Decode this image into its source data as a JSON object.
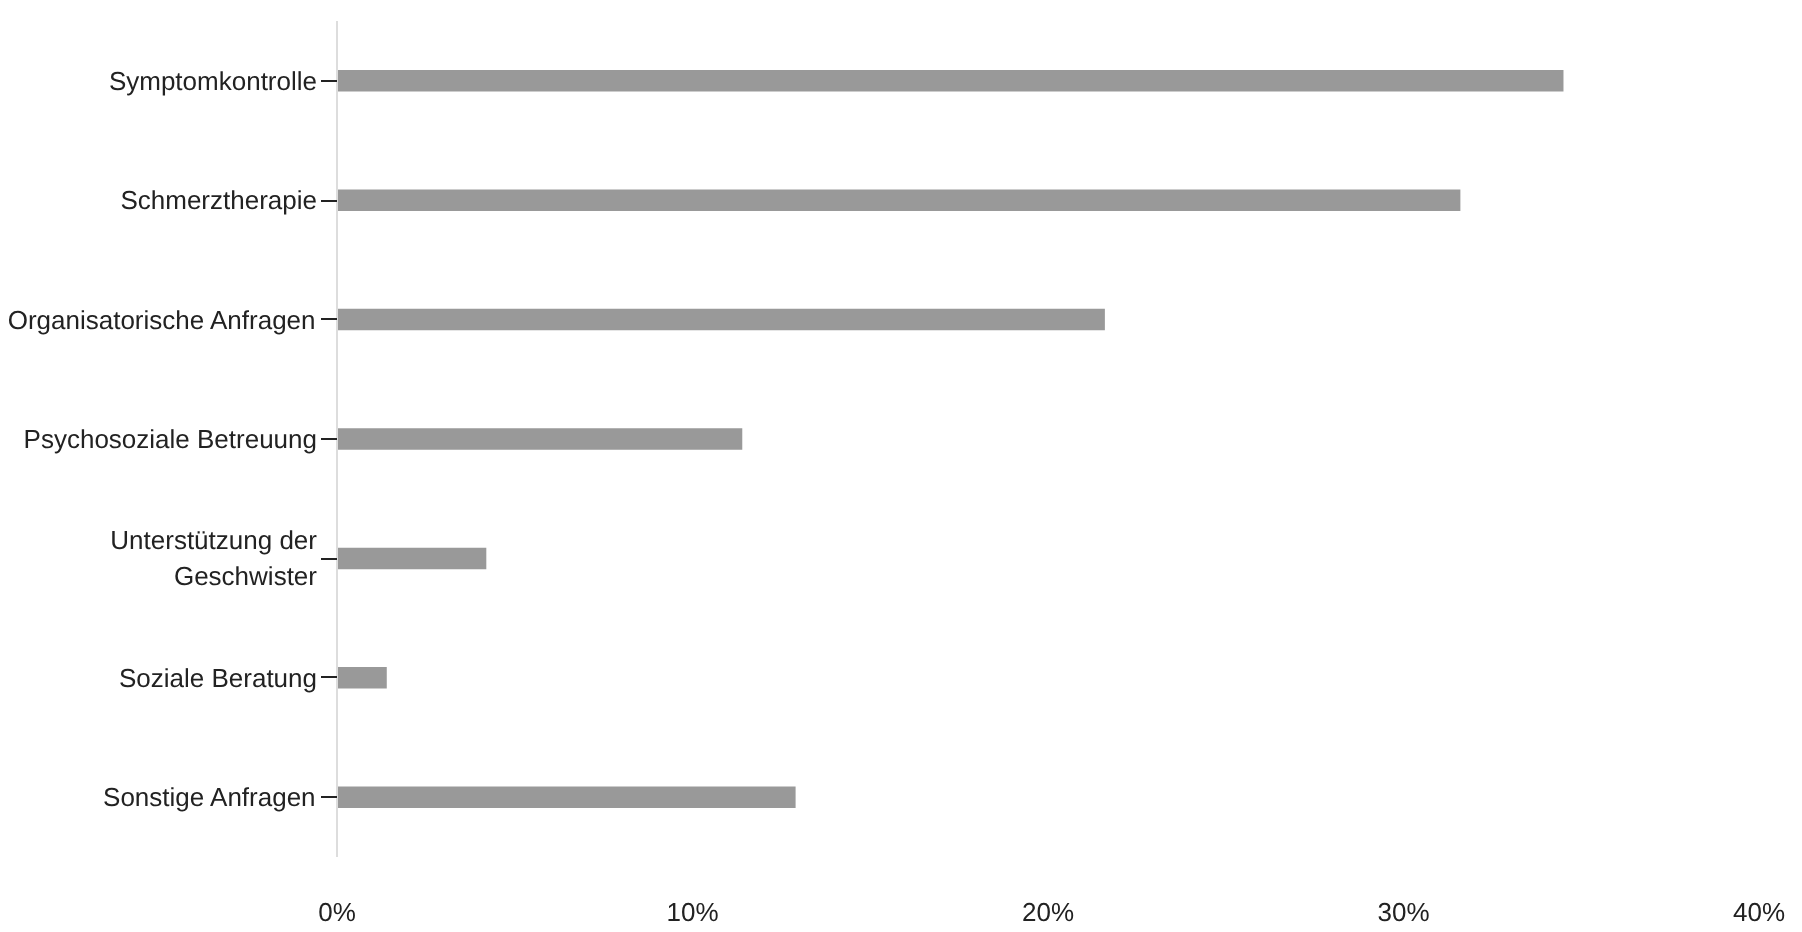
{
  "chart_data": {
    "type": "bar",
    "orientation": "horizontal",
    "categories": [
      "Symptomkontrolle",
      "Schmerztherapie",
      "Organisatorische Anfragen",
      "Psychosoziale Betreuung",
      "Unterstützung der Geschwister",
      "Soziale Beratung",
      "Sonstige Anfragen"
    ],
    "values": [
      34.5,
      31.6,
      21.6,
      11.4,
      4.2,
      1.4,
      12.9
    ],
    "color": "#999999",
    "xlim": [
      0,
      40
    ],
    "xticks": [
      {
        "value": 0,
        "label": "0%"
      },
      {
        "value": 10,
        "label": "10%"
      },
      {
        "value": 20,
        "label": "20%"
      },
      {
        "value": 30,
        "label": "30%"
      },
      {
        "value": 40,
        "label": "40%"
      }
    ],
    "grid": false
  }
}
